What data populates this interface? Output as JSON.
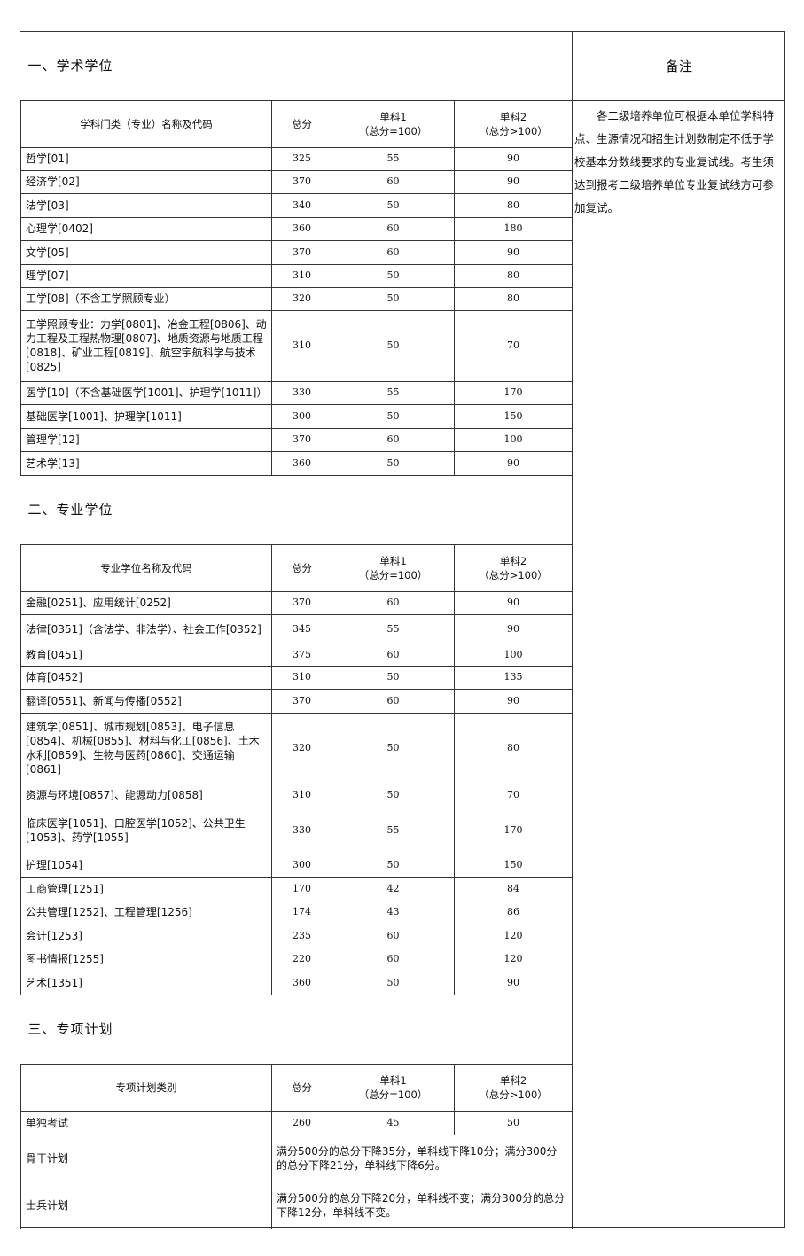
{
  "remarks": {
    "title": "备注",
    "text": "各二级培养单位可根据本单位学科特点、生源情况和招生计划数制定不低于学校基本分数线要求的专业复试线。考生须达到报考二级培养单位专业复试线方可参加复试。"
  },
  "sections": [
    {
      "title": "一、学术学位",
      "headers": [
        "学科门类（专业）名称及代码",
        "总分",
        "单科1\n（总分=100）",
        "单科2\n（总分>100）"
      ],
      "rows": [
        {
          "name": "哲学[01]",
          "total": "325",
          "s1": "55",
          "s2": "90"
        },
        {
          "name": "经济学[02]",
          "total": "370",
          "s1": "60",
          "s2": "90"
        },
        {
          "name": "法学[03]",
          "total": "340",
          "s1": "50",
          "s2": "80"
        },
        {
          "name": "心理学[0402]",
          "total": "360",
          "s1": "60",
          "s2": "180"
        },
        {
          "name": "文学[05]",
          "total": "370",
          "s1": "60",
          "s2": "90"
        },
        {
          "name": "理学[07]",
          "total": "310",
          "s1": "50",
          "s2": "80"
        },
        {
          "name": "工学[08]（不含工学照顾专业）",
          "total": "320",
          "s1": "50",
          "s2": "80"
        },
        {
          "name": "工学照顾专业：力学[0801]、冶金工程[0806]、动力工程及工程热物理[0807]、地质资源与地质工程[0818]、矿业工程[0819]、航空宇航科学与技术[0825]",
          "total": "310",
          "s1": "50",
          "s2": "70"
        },
        {
          "name": "医学[10]（不含基础医学[1001]、护理学[1011]）",
          "total": "330",
          "s1": "55",
          "s2": "170"
        },
        {
          "name": "基础医学[1001]、护理学[1011]",
          "total": "300",
          "s1": "50",
          "s2": "150"
        },
        {
          "name": "管理学[12]",
          "total": "370",
          "s1": "60",
          "s2": "100"
        },
        {
          "name": "艺术学[13]",
          "total": "360",
          "s1": "50",
          "s2": "90"
        }
      ]
    },
    {
      "title": "二、专业学位",
      "headers": [
        "专业学位名称及代码",
        "总分",
        "单科1\n（总分=100）",
        "单科2\n（总分>100）"
      ],
      "rows": [
        {
          "name": "金融[0251]、应用统计[0252]",
          "total": "370",
          "s1": "60",
          "s2": "90"
        },
        {
          "name": "法律[0351]（含法学、非法学）、社会工作[0352]",
          "total": "345",
          "s1": "55",
          "s2": "90"
        },
        {
          "name": "教育[0451]",
          "total": "375",
          "s1": "60",
          "s2": "100"
        },
        {
          "name": "体育[0452]",
          "total": "310",
          "s1": "50",
          "s2": "135"
        },
        {
          "name": "翻译[0551]、新闻与传播[0552]",
          "total": "370",
          "s1": "60",
          "s2": "90"
        },
        {
          "name": "建筑学[0851]、城市规划[0853]、电子信息[0854]、机械[0855]、材料与化工[0856]、土木水利[0859]、生物与医药[0860]、交通运输[0861]",
          "total": "320",
          "s1": "50",
          "s2": "80"
        },
        {
          "name": "资源与环境[0857]、能源动力[0858]",
          "total": "310",
          "s1": "50",
          "s2": "70"
        },
        {
          "name": "临床医学[1051]、口腔医学[1052]、公共卫生[1053]、药学[1055]",
          "total": "330",
          "s1": "55",
          "s2": "170"
        },
        {
          "name": "护理[1054]",
          "total": "300",
          "s1": "50",
          "s2": "150"
        },
        {
          "name": "工商管理[1251]",
          "total": "170",
          "s1": "42",
          "s2": "84"
        },
        {
          "name": "公共管理[1252]、工程管理[1256]",
          "total": "174",
          "s1": "43",
          "s2": "86"
        },
        {
          "name": "会计[1253]",
          "total": "235",
          "s1": "60",
          "s2": "120"
        },
        {
          "name": "图书情报[1255]",
          "total": "220",
          "s1": "60",
          "s2": "120"
        },
        {
          "name": "艺术[1351]",
          "total": "360",
          "s1": "50",
          "s2": "90"
        }
      ]
    },
    {
      "title": "三、专项计划",
      "headers": [
        "专项计划类别",
        "总分",
        "单科1\n（总分=100）",
        "单科2\n（总分>100）"
      ],
      "rows": [
        {
          "name": "单独考试",
          "total": "260",
          "s1": "45",
          "s2": "50"
        },
        {
          "name": "骨干计划",
          "merged": "满分500分的总分下降35分，单科线下降10分；满分300分的总分下降21分，单科线下降6分。"
        },
        {
          "name": "士兵计划",
          "merged": "满分500分的总分下降20分，单科线不变；满分300分的总分下降12分，单科线不变。"
        }
      ]
    }
  ]
}
